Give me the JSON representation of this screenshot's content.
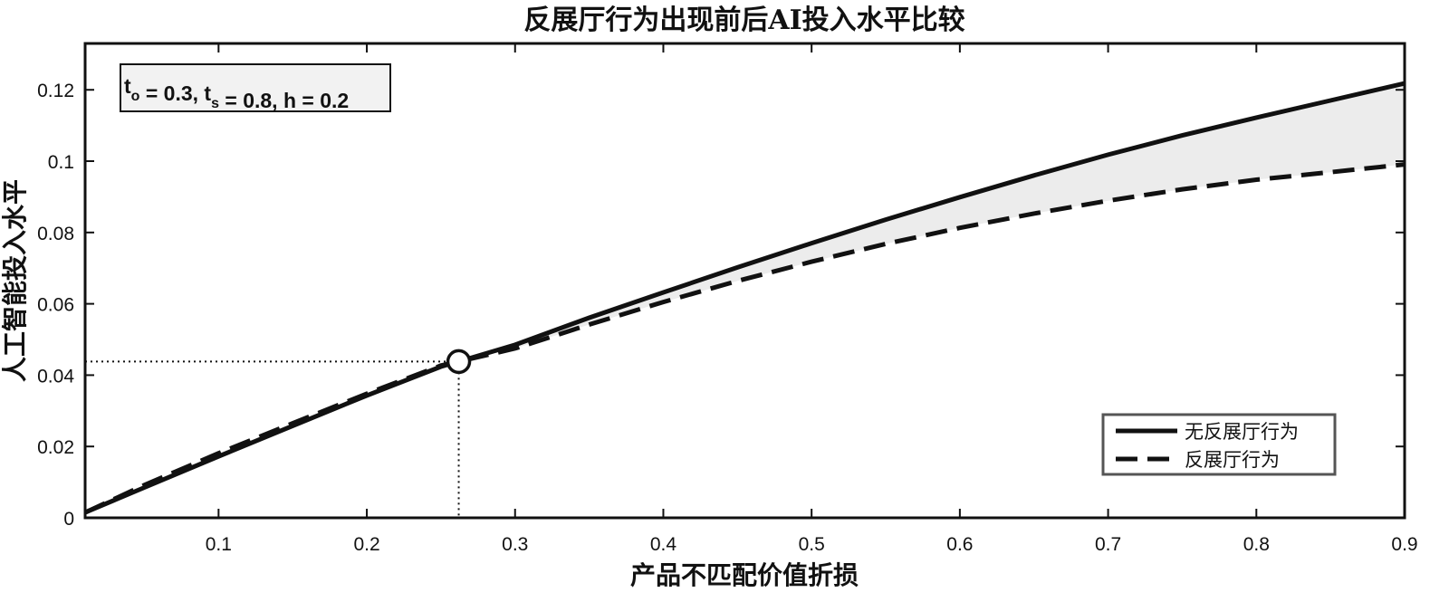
{
  "chart_data": {
    "type": "line",
    "title": "反展厅行为出现前后AI投入水平比较",
    "xlabel": "产品不匹配价值折损",
    "ylabel": "人工智能投入水平",
    "xlim": [
      0.01,
      0.9
    ],
    "ylim": [
      0,
      0.133
    ],
    "xticks": [
      0.1,
      0.2,
      0.3,
      0.4,
      0.5,
      0.6,
      0.7,
      0.8,
      0.9
    ],
    "xtick_labels": [
      "0.1",
      "0.2",
      "0.3",
      "0.4",
      "0.5",
      "0.6",
      "0.7",
      "0.8",
      "0.9"
    ],
    "yticks": [
      0,
      0.02,
      0.04,
      0.06,
      0.08,
      0.1,
      0.12
    ],
    "ytick_labels": [
      "0",
      "0.02",
      "0.04",
      "0.06",
      "0.08",
      "0.1",
      "0.12"
    ],
    "grid": false,
    "legend_position": "bottom-right",
    "series": [
      {
        "name": "无反展厅行为",
        "style": "solid",
        "color": "#111111",
        "x": [
          0.01,
          0.05,
          0.1,
          0.15,
          0.2,
          0.25,
          0.262,
          0.3,
          0.35,
          0.4,
          0.45,
          0.5,
          0.55,
          0.6,
          0.65,
          0.7,
          0.75,
          0.8,
          0.85,
          0.9
        ],
        "y": [
          0.0015,
          0.0085,
          0.0172,
          0.0258,
          0.0343,
          0.0424,
          0.0438,
          0.0485,
          0.0561,
          0.0632,
          0.0702,
          0.077,
          0.0836,
          0.0899,
          0.096,
          0.1018,
          0.1072,
          0.1122,
          0.117,
          0.1218
        ]
      },
      {
        "name": "反展厅行为",
        "style": "dashed",
        "color": "#111111",
        "x": [
          0.01,
          0.05,
          0.1,
          0.15,
          0.2,
          0.25,
          0.262,
          0.3,
          0.35,
          0.4,
          0.45,
          0.5,
          0.55,
          0.6,
          0.65,
          0.7,
          0.75,
          0.8,
          0.85,
          0.9
        ],
        "y": [
          0.0015,
          0.0092,
          0.0181,
          0.0265,
          0.0348,
          0.0427,
          0.0438,
          0.0475,
          0.0542,
          0.0605,
          0.0664,
          0.0718,
          0.0768,
          0.0813,
          0.0853,
          0.0889,
          0.0921,
          0.0948,
          0.0969,
          0.0991
        ]
      }
    ],
    "intersection": {
      "x": 0.262,
      "y": 0.0438
    },
    "annotation": {
      "parts": [
        {
          "text": "t",
          "sub": "o"
        },
        {
          "text": " = 0.3, t",
          "sub": "s"
        },
        {
          "text": " = 0.8, h = 0.2",
          "sub": ""
        }
      ]
    },
    "colors": {
      "axes": "#111111",
      "shade": "#ececec",
      "legend_border": "#555555"
    }
  }
}
